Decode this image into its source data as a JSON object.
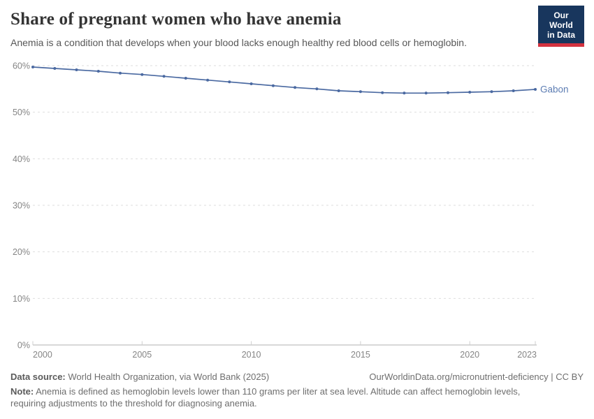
{
  "header": {
    "title": "Share of pregnant women who have anemia",
    "subtitle": "Anemia is a condition that develops when your blood lacks enough healthy red blood cells or hemoglobin."
  },
  "logo": {
    "line1": "Our World",
    "line2": "in Data",
    "bg_color": "#18365d",
    "accent_color": "#d4323f"
  },
  "chart_data": {
    "type": "line",
    "title": "Share of pregnant women who have anemia",
    "x": [
      2000,
      2001,
      2002,
      2003,
      2004,
      2005,
      2006,
      2007,
      2008,
      2009,
      2010,
      2011,
      2012,
      2013,
      2014,
      2015,
      2016,
      2017,
      2018,
      2019,
      2020,
      2021,
      2022,
      2023
    ],
    "series": [
      {
        "name": "Gabon",
        "color": "#4a69a1",
        "label_color": "#5d7db3",
        "values": [
          59.7,
          59.4,
          59.1,
          58.8,
          58.4,
          58.1,
          57.7,
          57.3,
          56.9,
          56.5,
          56.1,
          55.7,
          55.3,
          55.0,
          54.6,
          54.4,
          54.2,
          54.1,
          54.1,
          54.2,
          54.3,
          54.4,
          54.6,
          54.9
        ]
      }
    ],
    "ylim": [
      0,
      60
    ],
    "yticks": [
      0,
      10,
      20,
      30,
      40,
      50,
      60
    ],
    "ytick_suffix": "%",
    "xticks": [
      2000,
      2005,
      2010,
      2015,
      2020,
      2023
    ],
    "grid": "dashed-horizontal",
    "legend_position": "end-of-line"
  },
  "footer": {
    "datasource_label": "Data source:",
    "datasource": "World Health Organization, via World Bank (2025)",
    "link": "OurWorldinData.org/micronutrient-deficiency | CC BY",
    "note_label": "Note:",
    "note": "Anemia is defined as hemoglobin levels lower than 110 grams per liter at sea level. Altitude can affect hemoglobin levels, requiring adjustments to the threshold for diagnosing anemia."
  }
}
